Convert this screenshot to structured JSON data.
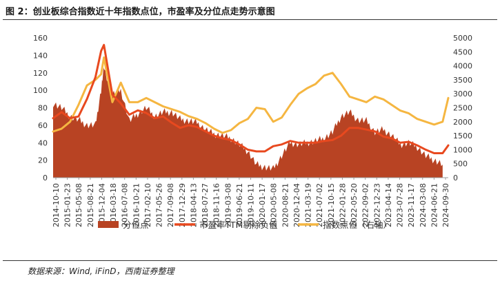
{
  "title": "图 2：创业板综合指数近十年指数点位，市盈率及分位点走势示意图",
  "source": "数据来源：Wind, iFinD，西南证券整理",
  "chart_data": {
    "type": "area",
    "title": "",
    "xlabel": "",
    "ylabel": "",
    "ylim": [
      0,
      160
    ],
    "yticks": [
      0,
      20,
      40,
      60,
      80,
      100,
      120,
      140,
      160
    ],
    "y2lim": [
      0,
      5000
    ],
    "y2ticks": [
      0,
      500,
      1000,
      1500,
      2000,
      2500,
      3000,
      3500,
      4000,
      4500,
      5000
    ],
    "xticks": [
      "2014-10-10",
      "2015-01-23",
      "2015-05-08",
      "2015-08-21",
      "2015-12-04",
      "2016-03-18",
      "2016-07-08",
      "2016-10-21",
      "2017-02-10",
      "2017-05-26",
      "2017-09-08",
      "2017-12-29",
      "2018-04-13",
      "2018-07-27",
      "2018-11-16",
      "2019-03-08",
      "2019-06-21",
      "2019-10-11",
      "2020-01-17",
      "2020-05-08",
      "2020-08-21",
      "2020-12-04",
      "2021-03-19",
      "2021-07-02",
      "2021-10-15",
      "2022-01-28",
      "2022-05-20",
      "2022-09-02",
      "2022-12-23",
      "2023-04-14",
      "2023-07-28",
      "2023-11-17",
      "2024-03-08",
      "2024-06-21",
      "2024-09-30"
    ],
    "legend_position": "bottom",
    "colors": {
      "percentile": "#b84323",
      "pe": "#e8491f",
      "index": "#f5b641"
    },
    "series": [
      {
        "name": "分位点",
        "axis": "left",
        "kind": "area",
        "x": [
          0,
          3,
          6,
          9,
          12,
          15,
          17,
          18,
          21,
          24,
          27,
          30,
          33,
          36,
          39,
          42,
          45,
          48,
          51,
          54,
          57,
          60,
          63,
          66,
          69,
          72,
          75,
          78,
          81,
          84,
          87,
          90,
          93,
          96,
          99,
          102,
          105,
          108,
          111,
          114,
          117,
          120,
          123,
          126,
          129,
          132,
          135,
          138
        ],
        "values": [
          85,
          80,
          70,
          66,
          60,
          60,
          100,
          126,
          95,
          100,
          65,
          73,
          80,
          70,
          75,
          75,
          67,
          65,
          63,
          55,
          50,
          48,
          45,
          38,
          30,
          15,
          12,
          10,
          25,
          40,
          38,
          40,
          42,
          45,
          52,
          70,
          75,
          66,
          65,
          52,
          55,
          48,
          38,
          40,
          35,
          25,
          20,
          15
        ]
      },
      {
        "name": "市盈率TTM剔除负值",
        "axis": "left",
        "kind": "line",
        "x": [
          0,
          3,
          6,
          9,
          12,
          15,
          17,
          18,
          21,
          24,
          27,
          30,
          33,
          36,
          39,
          42,
          45,
          48,
          51,
          54,
          57,
          60,
          63,
          66,
          69,
          72,
          75,
          78,
          81,
          84,
          87,
          90,
          93,
          96,
          99,
          102,
          105,
          108,
          111,
          114,
          117,
          120,
          123,
          126,
          129,
          132,
          135,
          138,
          140
        ],
        "values": [
          68,
          75,
          68,
          70,
          90,
          115,
          145,
          152,
          95,
          85,
          72,
          77,
          74,
          68,
          70,
          63,
          57,
          60,
          58,
          53,
          48,
          45,
          43,
          38,
          32,
          30,
          30,
          36,
          38,
          42,
          40,
          40,
          40,
          42,
          43,
          48,
          57,
          57,
          55,
          53,
          47,
          45,
          40,
          41,
          37,
          32,
          28,
          28,
          37
        ]
      },
      {
        "name": "指数点位（右轴）",
        "axis": "right",
        "kind": "line",
        "x": [
          0,
          3,
          6,
          9,
          12,
          15,
          17,
          18,
          21,
          24,
          27,
          30,
          33,
          36,
          39,
          42,
          45,
          48,
          51,
          54,
          57,
          60,
          63,
          66,
          69,
          72,
          75,
          78,
          81,
          84,
          87,
          90,
          93,
          96,
          99,
          102,
          105,
          108,
          111,
          114,
          117,
          120,
          123,
          126,
          129,
          132,
          135,
          138,
          140
        ],
        "values": [
          1650,
          1750,
          2000,
          2600,
          3300,
          3500,
          3700,
          4300,
          2700,
          3400,
          2700,
          2700,
          2850,
          2700,
          2550,
          2450,
          2350,
          2200,
          2100,
          1950,
          1750,
          1600,
          1700,
          1950,
          2100,
          2500,
          2450,
          2000,
          2150,
          2600,
          3000,
          3200,
          3350,
          3650,
          3750,
          3350,
          2900,
          2800,
          2700,
          2900,
          2800,
          2600,
          2400,
          2300,
          2100,
          2000,
          1900,
          2000,
          2850
        ]
      }
    ]
  },
  "legend": [
    {
      "label": "分位点",
      "swatch": "box",
      "color": "#b84323"
    },
    {
      "label": "市盈率TTM剔除负值",
      "swatch": "line",
      "color": "#e8491f"
    },
    {
      "label": "指数点位（右轴）",
      "swatch": "line",
      "color": "#f5b641"
    }
  ]
}
